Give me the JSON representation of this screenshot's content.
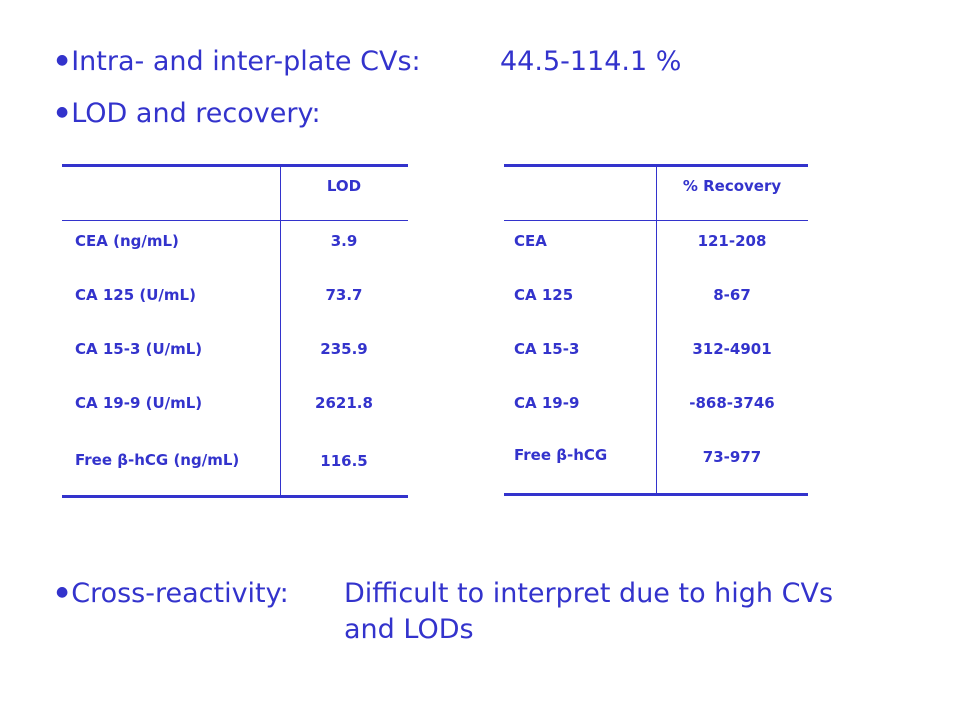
{
  "bullets": {
    "cvs_label": "Intra- and inter-plate CVs:",
    "cvs_value": "44.5-114.1 %",
    "lod_label": "LOD and recovery:",
    "cross_label": "Cross-reactivity:",
    "cross_value_line1": "Difficult to interpret due to high CVs",
    "cross_value_line2": "and LODs"
  },
  "lod_table": {
    "header": "LOD",
    "rows": [
      {
        "analyte": "CEA (ng/mL)",
        "value": "3.9"
      },
      {
        "analyte": "CA 125 (U/mL)",
        "value": "73.7"
      },
      {
        "analyte": "CA 15-3 (U/mL)",
        "value": "235.9"
      },
      {
        "analyte": "CA 19-9 (U/mL)",
        "value": "2621.8"
      },
      {
        "analyte": "Free β-hCG (ng/mL)",
        "value": "116.5"
      }
    ]
  },
  "recovery_table": {
    "header": "% Recovery",
    "rows": [
      {
        "analyte": "CEA",
        "value": "121-208"
      },
      {
        "analyte": "CA 125",
        "value": "8-67"
      },
      {
        "analyte": "CA 15-3",
        "value": "312-4901"
      },
      {
        "analyte": "CA 19-9",
        "value": "-868-3746"
      },
      {
        "analyte": "Free β-hCG",
        "value": "73-977"
      }
    ]
  },
  "colors": {
    "text": "#3333cc",
    "background": "#ffffff"
  }
}
